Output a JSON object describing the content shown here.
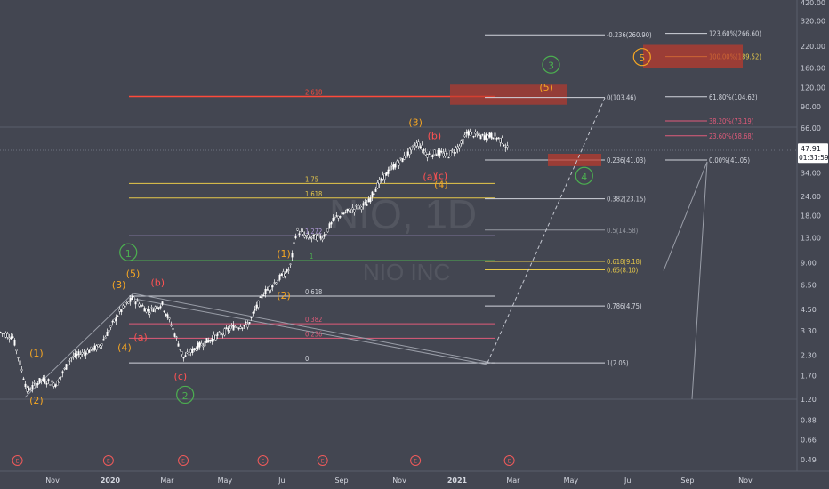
{
  "watermark": {
    "ticker": "NIO, 1D",
    "name": "NIO INC"
  },
  "current_price": {
    "value": "47.91",
    "countdown": "01:31:59",
    "color": "#131722"
  },
  "colors": {
    "background": "#434651",
    "candle": "#ffffff",
    "grid": "#555966",
    "axis_text": "#c9ccd6",
    "wave_orange": "#f5a623",
    "wave_red": "#ff5252",
    "wave_green": "#4caf50",
    "fib_gray": "#d1d4dc",
    "fib_yellow": "#e6c84a",
    "fib_purple": "#b39ddb",
    "fib_green": "#4caf50",
    "fib_pink": "#e05b7a",
    "fib_red": "#ff4a3a",
    "zone_red": "#c0392b"
  },
  "chart_data": {
    "type": "candlestick",
    "title": "",
    "y_scale": "log",
    "y_ticks": [
      "420.00",
      "320.00",
      "220.00",
      "160.00",
      "120.00",
      "90.00",
      "66.00",
      "47.91",
      "34.00",
      "24.00",
      "18.00",
      "13.00",
      "9.00",
      "6.50",
      "4.50",
      "3.30",
      "2.30",
      "1.70",
      "1.20",
      "0.88",
      "0.66",
      "0.49"
    ],
    "x_ticks": [
      "Nov",
      "2020",
      "Mar",
      "May",
      "Jul",
      "Sep",
      "Nov",
      "2021",
      "Mar",
      "May",
      "Jul",
      "Sep",
      "Nov"
    ],
    "price_path": [
      {
        "date": "2019-09-02",
        "close": 3.3
      },
      {
        "date": "2019-09-20",
        "close": 3.0
      },
      {
        "date": "2019-10-05",
        "close": 1.35
      },
      {
        "date": "2019-10-20",
        "close": 1.6
      },
      {
        "date": "2019-11-05",
        "close": 1.5
      },
      {
        "date": "2019-11-20",
        "close": 2.2
      },
      {
        "date": "2019-12-05",
        "close": 2.4
      },
      {
        "date": "2019-12-20",
        "close": 2.6
      },
      {
        "date": "2020-01-10",
        "close": 4.3
      },
      {
        "date": "2020-01-24",
        "close": 5.3
      },
      {
        "date": "2020-02-10",
        "close": 4.4
      },
      {
        "date": "2020-02-24",
        "close": 4.9
      },
      {
        "date": "2020-03-05",
        "close": 3.6
      },
      {
        "date": "2020-03-18",
        "close": 2.2
      },
      {
        "date": "2020-04-01",
        "close": 2.6
      },
      {
        "date": "2020-04-20",
        "close": 3.0
      },
      {
        "date": "2020-05-10",
        "close": 3.5
      },
      {
        "date": "2020-05-25",
        "close": 3.6
      },
      {
        "date": "2020-06-10",
        "close": 5.7
      },
      {
        "date": "2020-06-25",
        "close": 7.0
      },
      {
        "date": "2020-07-08",
        "close": 8.2
      },
      {
        "date": "2020-07-15",
        "close": 14.5
      },
      {
        "date": "2020-07-28",
        "close": 13.0
      },
      {
        "date": "2020-08-12",
        "close": 13.2
      },
      {
        "date": "2020-08-25",
        "close": 17.5
      },
      {
        "date": "2020-09-10",
        "close": 19.5
      },
      {
        "date": "2020-09-28",
        "close": 21.5
      },
      {
        "date": "2020-10-08",
        "close": 28.0
      },
      {
        "date": "2020-10-22",
        "close": 36.0
      },
      {
        "date": "2020-11-05",
        "close": 42.0
      },
      {
        "date": "2020-11-20",
        "close": 53.0
      },
      {
        "date": "2020-12-01",
        "close": 44.0
      },
      {
        "date": "2020-12-10",
        "close": 46.0
      },
      {
        "date": "2020-12-22",
        "close": 44.0
      },
      {
        "date": "2021-01-05",
        "close": 52.0
      },
      {
        "date": "2021-01-11",
        "close": 62.0
      },
      {
        "date": "2021-01-25",
        "close": 58.0
      },
      {
        "date": "2021-02-08",
        "close": 59.0
      },
      {
        "date": "2021-02-18",
        "close": 54.0
      },
      {
        "date": "2021-02-23",
        "close": 47.91
      }
    ],
    "fib_levels_left": [
      {
        "label": "2.618",
        "price": 105,
        "color": "#ff4a3a"
      },
      {
        "label": "1.75",
        "price": 29.0,
        "color": "#e6c84a"
      },
      {
        "label": "1.618",
        "price": 23.4,
        "color": "#e6c84a"
      },
      {
        "label": "1.272",
        "price": 13.4,
        "color": "#b39ddb"
      },
      {
        "label": "1",
        "price": 9.3,
        "color": "#4caf50"
      },
      {
        "label": "0.618",
        "price": 5.5,
        "color": "#d1d4dc"
      },
      {
        "label": "0.382",
        "price": 3.65,
        "color": "#e05b7a"
      },
      {
        "label": "0.236",
        "price": 2.95,
        "color": "#e05b7a"
      },
      {
        "label": "0",
        "price": 2.05,
        "color": "#d1d4dc"
      }
    ],
    "fib_levels_right": [
      {
        "label": "-0.236(260.90)",
        "price": 260.9,
        "color": "#d1d4dc"
      },
      {
        "label": "0(103.46)",
        "price": 103.46,
        "color": "#d1d4dc"
      },
      {
        "label": "0.236(41.03)",
        "price": 41.03,
        "color": "#d1d4dc"
      },
      {
        "label": "0.382(23.15)",
        "price": 23.15,
        "color": "#d1d4dc"
      },
      {
        "label": "0.5(14.58)",
        "price": 14.58,
        "color": "#9598a1"
      },
      {
        "label": "0.618(9.18)",
        "price": 9.18,
        "color": "#e6c84a"
      },
      {
        "label": "0.65(8.10)",
        "price": 8.1,
        "color": "#e6c84a"
      },
      {
        "label": "0.786(4.75)",
        "price": 4.75,
        "color": "#d1d4dc"
      },
      {
        "label": "1(2.05)",
        "price": 2.05,
        "color": "#d1d4dc"
      }
    ],
    "fib_levels_ext": [
      {
        "label": "123.60%(266.60)",
        "price": 266.6,
        "color": "#d1d4dc"
      },
      {
        "label": "100.00%(189.52)",
        "price": 189.52,
        "color": "#e6c84a"
      },
      {
        "label": "61.80%(104.62)",
        "price": 104.62,
        "color": "#d1d4dc"
      },
      {
        "label": "38.20%(73.19)",
        "price": 73.19,
        "color": "#e05b7a"
      },
      {
        "label": "23.60%(58.68)",
        "price": 58.68,
        "color": "#e05b7a"
      },
      {
        "label": "0.00%(41.05)",
        "price": 41.05,
        "color": "#d1d4dc"
      }
    ],
    "wave_labels": [
      {
        "text": "(1)",
        "date": "2019-10-15",
        "price": 2.25,
        "color": "#f5a623"
      },
      {
        "text": "(2)",
        "date": "2019-10-15",
        "price": 1.12,
        "color": "#f5a623"
      },
      {
        "text": "(3)",
        "date": "2020-01-10",
        "price": 6.2,
        "color": "#f5a623"
      },
      {
        "text": "(4)",
        "date": "2020-01-16",
        "price": 2.45,
        "color": "#f5a623"
      },
      {
        "text": "(5)",
        "date": "2020-01-25",
        "price": 7.3,
        "color": "#f5a623"
      },
      {
        "text": "(a)",
        "date": "2020-02-02",
        "price": 2.85,
        "color": "#ff5252"
      },
      {
        "text": "(b)",
        "date": "2020-02-20",
        "price": 6.4,
        "color": "#ff5252"
      },
      {
        "text": "(c)",
        "date": "2020-03-15",
        "price": 1.6,
        "color": "#ff5252"
      },
      {
        "text": "(1)",
        "date": "2020-07-02",
        "price": 9.8,
        "color": "#f5a623"
      },
      {
        "text": "(2)",
        "date": "2020-07-02",
        "price": 5.3,
        "color": "#f5a623"
      },
      {
        "text": "(3)",
        "date": "2020-11-18",
        "price": 68.0,
        "color": "#f5a623"
      },
      {
        "text": "(b)",
        "date": "2020-12-08",
        "price": 56.0,
        "color": "#ff5252"
      },
      {
        "text": "(a)",
        "date": "2020-12-03",
        "price": 30.5,
        "color": "#ff5252"
      },
      {
        "text": "(c)",
        "date": "2020-12-15",
        "price": 31.0,
        "color": "#ff5252"
      },
      {
        "text": "(4)",
        "date": "2020-12-15",
        "price": 27.2,
        "color": "#f5a623"
      },
      {
        "text": "(5)",
        "date": "2021-04-05",
        "price": 114.0,
        "color": "#f5a623"
      }
    ],
    "wave_circles": [
      {
        "text": "1",
        "date": "2020-01-20",
        "price": 10.5,
        "color": "#4caf50"
      },
      {
        "text": "2",
        "date": "2020-03-20",
        "price": 1.28,
        "color": "#4caf50"
      },
      {
        "text": "3",
        "date": "2021-04-10",
        "price": 168.0,
        "color": "#4caf50"
      },
      {
        "text": "4",
        "date": "2021-05-15",
        "price": 32.5,
        "color": "#4caf50"
      },
      {
        "text": "5",
        "date": "2021-07-15",
        "price": 188.0,
        "color": "#f5a623"
      }
    ],
    "earnings_dates": [
      "2019-09-25",
      "2019-12-30",
      "2020-03-18",
      "2020-06-10",
      "2020-08-12",
      "2020-11-18",
      "2021-02-25"
    ]
  }
}
